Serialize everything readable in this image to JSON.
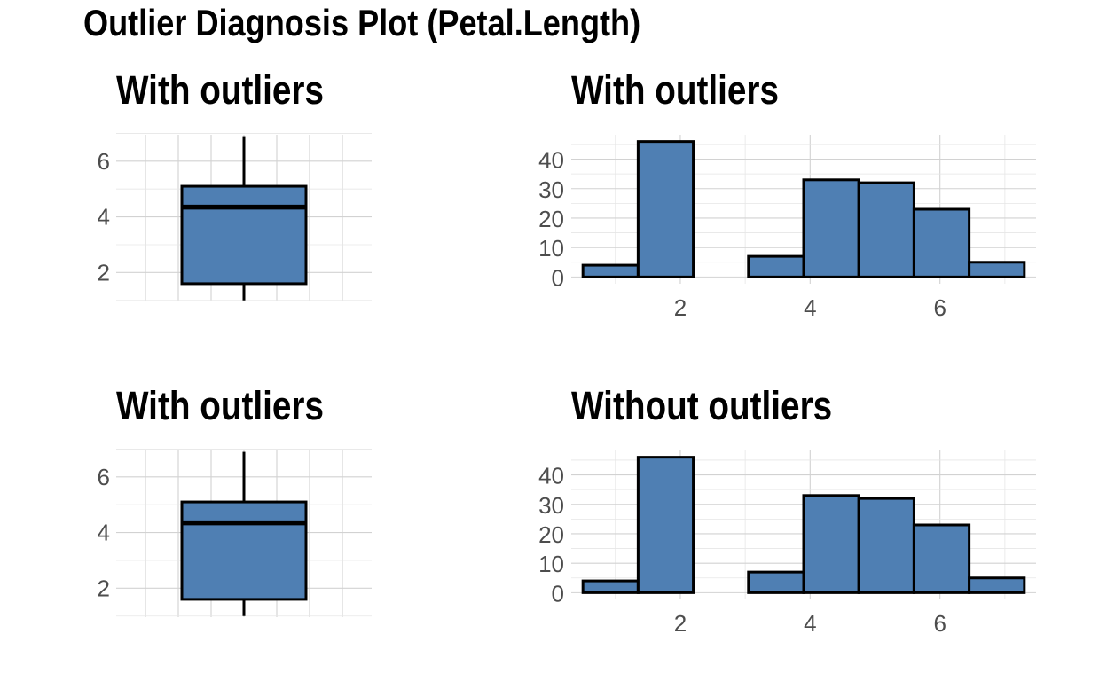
{
  "title": "Outlier Diagnosis Plot (Petal.Length)",
  "colors": {
    "fill": "#4f7fb3",
    "outline": "#000000",
    "grid": "#d2d2d2"
  },
  "chart_data": [
    {
      "id": "box-top",
      "type": "box",
      "title": "With outliers",
      "ylim": [
        0.96,
        6.95
      ],
      "yticks": [
        2,
        4,
        6
      ],
      "stats": {
        "min": 1.0,
        "q1": 1.6,
        "median": 4.35,
        "q3": 5.1,
        "max": 6.9
      },
      "grid": true
    },
    {
      "id": "hist-top",
      "type": "bar",
      "title": "With outliers",
      "xlim": [
        0.32,
        7.48
      ],
      "ylim": [
        -2.3,
        48.3
      ],
      "xticks": [
        2,
        4,
        6
      ],
      "yticks": [
        0,
        10,
        20,
        30,
        40
      ],
      "bins": [
        {
          "x0": 0.5,
          "x1": 1.35,
          "count": 4
        },
        {
          "x0": 1.35,
          "x1": 2.2,
          "count": 46
        },
        {
          "x0": 2.2,
          "x1": 3.05,
          "count": 0
        },
        {
          "x0": 3.05,
          "x1": 3.9,
          "count": 7
        },
        {
          "x0": 3.9,
          "x1": 4.75,
          "count": 33
        },
        {
          "x0": 4.75,
          "x1": 5.6,
          "count": 32
        },
        {
          "x0": 5.6,
          "x1": 6.45,
          "count": 23
        },
        {
          "x0": 6.45,
          "x1": 7.3,
          "count": 5
        }
      ],
      "grid": true
    },
    {
      "id": "box-bottom",
      "type": "box",
      "title": "With outliers",
      "ylim": [
        0.96,
        6.95
      ],
      "yticks": [
        2,
        4,
        6
      ],
      "stats": {
        "min": 1.0,
        "q1": 1.6,
        "median": 4.35,
        "q3": 5.1,
        "max": 6.9
      },
      "grid": true
    },
    {
      "id": "hist-bottom",
      "type": "bar",
      "title": "Without outliers",
      "xlim": [
        0.32,
        7.48
      ],
      "ylim": [
        -2.3,
        48.3
      ],
      "xticks": [
        2,
        4,
        6
      ],
      "yticks": [
        0,
        10,
        20,
        30,
        40
      ],
      "bins": [
        {
          "x0": 0.5,
          "x1": 1.35,
          "count": 4
        },
        {
          "x0": 1.35,
          "x1": 2.2,
          "count": 46
        },
        {
          "x0": 2.2,
          "x1": 3.05,
          "count": 0
        },
        {
          "x0": 3.05,
          "x1": 3.9,
          "count": 7
        },
        {
          "x0": 3.9,
          "x1": 4.75,
          "count": 33
        },
        {
          "x0": 4.75,
          "x1": 5.6,
          "count": 32
        },
        {
          "x0": 5.6,
          "x1": 6.45,
          "count": 23
        },
        {
          "x0": 6.45,
          "x1": 7.3,
          "count": 5
        }
      ],
      "grid": true
    }
  ]
}
